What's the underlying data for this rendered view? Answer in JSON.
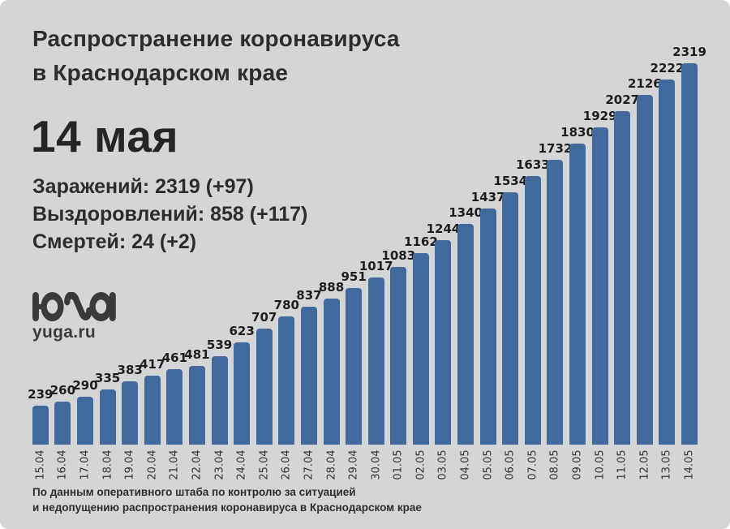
{
  "header": {
    "title_line1": "Распространение коронавируса",
    "title_line2": "в Краснодарском крае",
    "date": "14 мая"
  },
  "stats": {
    "infections": "Заражений: 2319 (+97)",
    "recoveries": "Выздоровлений: 858 (+117)",
    "deaths": "Смертей: 24 (+2)"
  },
  "logo": {
    "text": "yuga.ru"
  },
  "footer": {
    "line1": "По данным оперативного штаба по контролю за ситуацией",
    "line2": "и недопущению распространения коронавируса в Краснодарском крае"
  },
  "colors": {
    "background": "#d4d5d6",
    "bar": "#42699c",
    "text": "#2d2d2f",
    "logo": "#3a3a3c"
  },
  "chart_data": {
    "type": "bar",
    "categories": [
      "15.04",
      "16.04",
      "17.04",
      "18.04",
      "19.04",
      "20.04",
      "21.04",
      "22.04",
      "23.04",
      "24.04",
      "25.04",
      "26.04",
      "27.04",
      "28.04",
      "29.04",
      "30.04",
      "01.05",
      "02.05",
      "03.05",
      "04.05",
      "05.05",
      "06.05",
      "07.05",
      "08.05",
      "09.05",
      "10.05",
      "11.05",
      "12.05",
      "13.05",
      "14.05"
    ],
    "values": [
      239,
      260,
      290,
      335,
      383,
      417,
      461,
      481,
      539,
      623,
      707,
      780,
      837,
      888,
      951,
      1017,
      1083,
      1162,
      1244,
      1340,
      1437,
      1534,
      1633,
      1732,
      1830,
      1929,
      2027,
      2126,
      2222,
      2319
    ],
    "title": "Распространение коронавируса в Краснодарском крае",
    "xlabel": "",
    "ylabel": "",
    "ylim": [
      0,
      2319
    ],
    "bar_color": "#42699c",
    "value_labels": true,
    "grid": false,
    "legend": false
  }
}
